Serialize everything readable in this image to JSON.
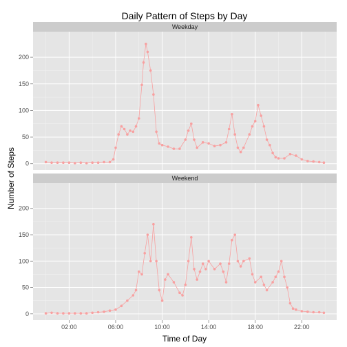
{
  "chart_data": {
    "type": "line",
    "title": "Daily Pattern of Steps by Day",
    "xlabel": "Time of Day",
    "ylabel": "Number of Steps",
    "x_ticks": [
      {
        "value": 2,
        "label": "02:00"
      },
      {
        "value": 6,
        "label": "06:00"
      },
      {
        "value": 10,
        "label": "10:00"
      },
      {
        "value": 14,
        "label": "14:00"
      },
      {
        "value": 18,
        "label": "18:00"
      },
      {
        "value": 22,
        "label": "22:00"
      }
    ],
    "y_ticks": [
      0,
      50,
      100,
      150,
      200
    ],
    "xlim": [
      -1.1,
      25
    ],
    "ylim": [
      -12,
      248
    ],
    "series_color": "#F8A0A0",
    "panel_bg": "#E5E5E5",
    "strip_bg": "#CCCCCC",
    "grid": true,
    "panels": [
      {
        "label": "Weekday",
        "points": [
          [
            0,
            3
          ],
          [
            0.5,
            2
          ],
          [
            1,
            2
          ],
          [
            1.5,
            2
          ],
          [
            2,
            2
          ],
          [
            2.5,
            1
          ],
          [
            3,
            2
          ],
          [
            3.5,
            1
          ],
          [
            4,
            2
          ],
          [
            4.5,
            2
          ],
          [
            5,
            3
          ],
          [
            5.5,
            3
          ],
          [
            5.8,
            8
          ],
          [
            6,
            30
          ],
          [
            6.25,
            55
          ],
          [
            6.5,
            70
          ],
          [
            6.75,
            65
          ],
          [
            7,
            55
          ],
          [
            7.25,
            62
          ],
          [
            7.5,
            60
          ],
          [
            7.75,
            70
          ],
          [
            8,
            85
          ],
          [
            8.25,
            148
          ],
          [
            8.4,
            190
          ],
          [
            8.6,
            225
          ],
          [
            8.75,
            210
          ],
          [
            9,
            175
          ],
          [
            9.25,
            130
          ],
          [
            9.5,
            60
          ],
          [
            9.75,
            38
          ],
          [
            10,
            35
          ],
          [
            10.5,
            32
          ],
          [
            11,
            28
          ],
          [
            11.5,
            28
          ],
          [
            12,
            45
          ],
          [
            12.25,
            62
          ],
          [
            12.5,
            75
          ],
          [
            12.75,
            45
          ],
          [
            13,
            30
          ],
          [
            13.5,
            40
          ],
          [
            14,
            38
          ],
          [
            14.5,
            33
          ],
          [
            15,
            35
          ],
          [
            15.5,
            40
          ],
          [
            15.75,
            65
          ],
          [
            16,
            93
          ],
          [
            16.25,
            55
          ],
          [
            16.5,
            30
          ],
          [
            16.75,
            22
          ],
          [
            17,
            30
          ],
          [
            17.5,
            55
          ],
          [
            17.75,
            70
          ],
          [
            18,
            80
          ],
          [
            18.25,
            110
          ],
          [
            18.5,
            90
          ],
          [
            18.75,
            70
          ],
          [
            19,
            45
          ],
          [
            19.25,
            35
          ],
          [
            19.5,
            20
          ],
          [
            19.75,
            12
          ],
          [
            20,
            10
          ],
          [
            20.5,
            10
          ],
          [
            21,
            18
          ],
          [
            21.5,
            15
          ],
          [
            22,
            8
          ],
          [
            22.5,
            5
          ],
          [
            23,
            4
          ],
          [
            23.5,
            3
          ],
          [
            23.9,
            2
          ]
        ]
      },
      {
        "label": "Weekend",
        "points": [
          [
            0,
            1
          ],
          [
            0.5,
            2
          ],
          [
            1,
            1
          ],
          [
            1.5,
            1
          ],
          [
            2,
            1
          ],
          [
            2.5,
            1
          ],
          [
            3,
            1
          ],
          [
            3.5,
            1
          ],
          [
            4,
            2
          ],
          [
            4.5,
            3
          ],
          [
            5,
            4
          ],
          [
            5.5,
            6
          ],
          [
            6,
            8
          ],
          [
            6.5,
            15
          ],
          [
            7,
            25
          ],
          [
            7.5,
            35
          ],
          [
            7.75,
            45
          ],
          [
            8,
            80
          ],
          [
            8.25,
            75
          ],
          [
            8.5,
            115
          ],
          [
            8.75,
            150
          ],
          [
            9,
            100
          ],
          [
            9.25,
            170
          ],
          [
            9.5,
            100
          ],
          [
            9.75,
            45
          ],
          [
            10,
            25
          ],
          [
            10.25,
            65
          ],
          [
            10.5,
            75
          ],
          [
            11,
            60
          ],
          [
            11.5,
            40
          ],
          [
            11.75,
            35
          ],
          [
            12,
            55
          ],
          [
            12.25,
            100
          ],
          [
            12.5,
            145
          ],
          [
            12.75,
            85
          ],
          [
            13,
            65
          ],
          [
            13.25,
            80
          ],
          [
            13.5,
            95
          ],
          [
            13.75,
            85
          ],
          [
            14,
            100
          ],
          [
            14.5,
            85
          ],
          [
            15,
            95
          ],
          [
            15.25,
            80
          ],
          [
            15.5,
            60
          ],
          [
            15.75,
            95
          ],
          [
            16,
            140
          ],
          [
            16.25,
            150
          ],
          [
            16.5,
            100
          ],
          [
            16.75,
            90
          ],
          [
            17,
            100
          ],
          [
            17.5,
            105
          ],
          [
            17.75,
            75
          ],
          [
            18,
            60
          ],
          [
            18.5,
            70
          ],
          [
            18.75,
            55
          ],
          [
            19,
            45
          ],
          [
            19.5,
            60
          ],
          [
            19.75,
            70
          ],
          [
            20,
            80
          ],
          [
            20.25,
            100
          ],
          [
            20.5,
            70
          ],
          [
            20.75,
            50
          ],
          [
            21,
            20
          ],
          [
            21.25,
            10
          ],
          [
            21.5,
            8
          ],
          [
            22,
            5
          ],
          [
            22.5,
            4
          ],
          [
            23,
            3
          ],
          [
            23.5,
            3
          ],
          [
            23.9,
            2
          ]
        ]
      }
    ]
  }
}
